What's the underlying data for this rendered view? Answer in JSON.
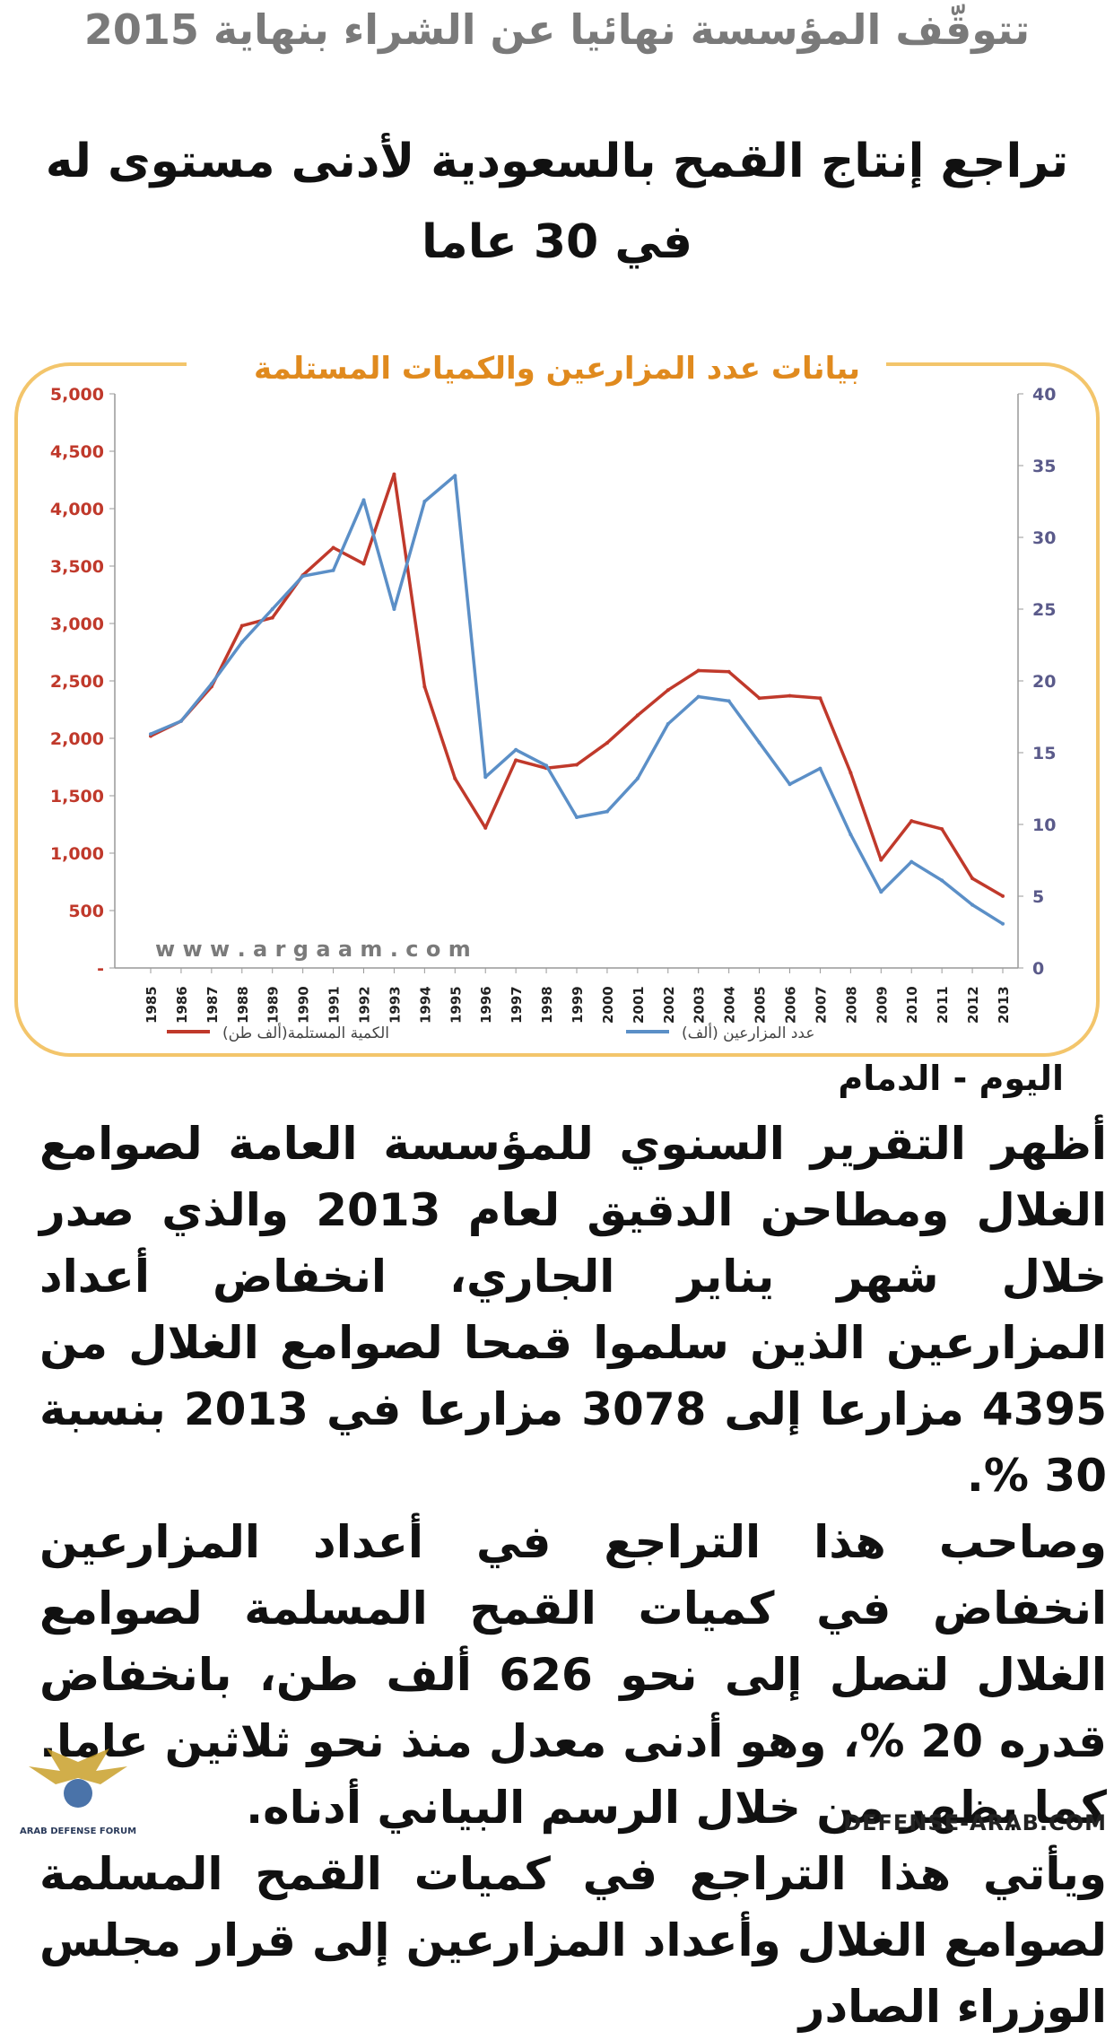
{
  "headline_top": "تتوقّف المؤسسة نهائيا عن الشراء بنهاية 2015",
  "headline_main": "تراجع إنتاج القمح بالسعودية لأدنى مستوى له في 30 عاما",
  "byline": "اليوم - الدمام",
  "paragraphs": [
    "أظهر التقرير السنوي للمؤسسة العامة لصوامع الغلال ومطاحن الدقيق لعام 2013 والذي صدر خلال شهر يناير الجاري، انخفاض أعداد المزارعين الذين سلموا قمحا لصوامع الغلال من 4395 مزارعا إلى 3078 مزارعا في 2013 بنسبة 30 %.",
    "وصاحب هذا التراجع في أعداد المزارعين انخفاض في كميات القمح المسلمة لصوامع الغلال لتصل إلى نحو 626 ألف طن، بانخفاض قدره 20 %، وهو أدنى معدل منذ نحو ثلاثين عاما. كما يظهر من خلال الرسم البياني أدناه.",
    "ويأتي هذا التراجع في كميات القمح المسلمة لصوامع الغلال وأعداد المزارعين إلى قرار مجلس الوزراء الصادر"
  ],
  "watermark_left": "ARAB DEFENSE FORUM",
  "watermark_right": "DEFENSE-ARAB.COM",
  "chart_data": {
    "type": "line",
    "title": "بيانات عدد المزارعين والكميات المستلمة",
    "watermark": "w w w . a r g a a m . c o m",
    "x": [
      "1985",
      "1986",
      "1987",
      "1988",
      "1989",
      "1990",
      "1991",
      "1992",
      "1993",
      "1994",
      "1995",
      "1996",
      "1997",
      "1998",
      "1999",
      "2000",
      "2001",
      "2002",
      "2003",
      "2004",
      "2005",
      "2006",
      "2007",
      "2008",
      "2009",
      "2010",
      "2011",
      "2012",
      "2013"
    ],
    "y_left_ticks": [
      "-",
      "500",
      "1,000",
      "1,500",
      "2,000",
      "2,500",
      "3,000",
      "3,500",
      "4,000",
      "4,500",
      "5,000"
    ],
    "y_right_ticks": [
      "0",
      "5",
      "10",
      "15",
      "20",
      "25",
      "30",
      "35",
      "40"
    ],
    "ylim_left": [
      0,
      5000
    ],
    "ylim_right": [
      0,
      40
    ],
    "series": [
      {
        "name": "الكمية المستلمة(ألف طن)",
        "axis": "left",
        "color": "#c0392b",
        "values": [
          2020,
          2150,
          2450,
          2980,
          3050,
          3420,
          3660,
          3520,
          4300,
          2450,
          1650,
          1220,
          1810,
          1740,
          1770,
          1960,
          2200,
          2420,
          2590,
          2580,
          2350,
          2370,
          2350,
          1700,
          940,
          1280,
          1210,
          780,
          626
        ]
      },
      {
        "name": "عدد المزارعين (ألف)",
        "axis": "right",
        "color": "#5b8fc7",
        "values": [
          16.3,
          17.2,
          19.8,
          22.7,
          25.0,
          27.3,
          27.7,
          32.6,
          25.0,
          32.5,
          34.3,
          13.3,
          15.2,
          14.1,
          10.5,
          10.9,
          13.2,
          17.0,
          18.9,
          18.6,
          15.7,
          12.8,
          13.9,
          9.3,
          5.3,
          7.4,
          6.1,
          4.4,
          3.078
        ]
      }
    ]
  }
}
